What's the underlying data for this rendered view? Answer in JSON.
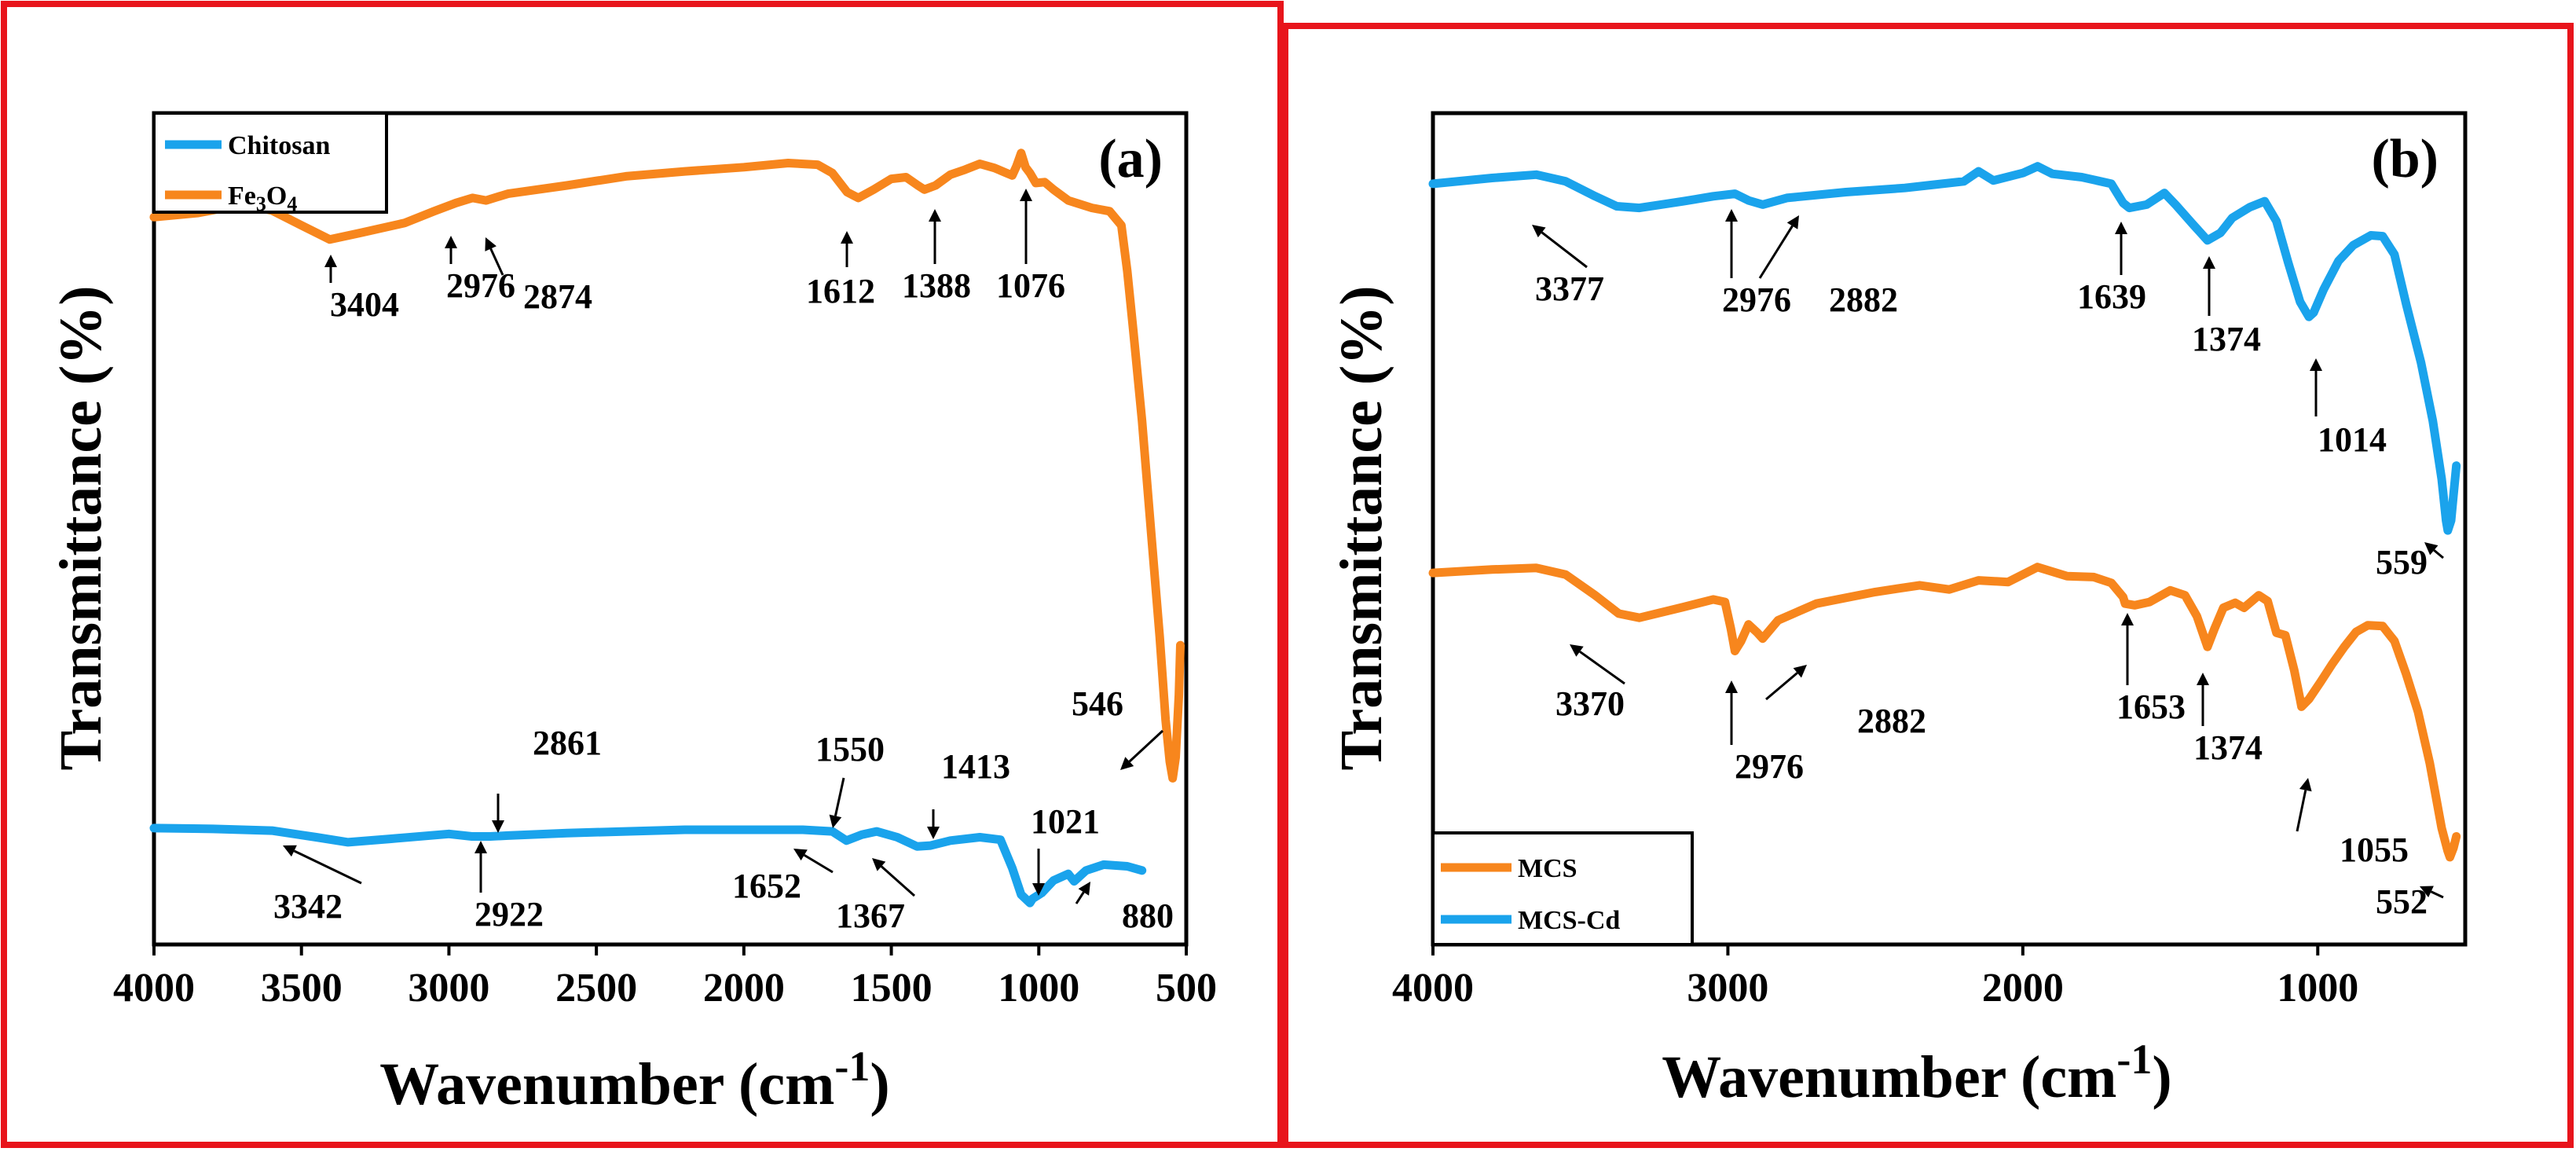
{
  "chart_data": [
    {
      "type": "line",
      "panel_label": "(a)",
      "xlabel": "Wavenumber (cm",
      "xlabel_sup": "-1",
      "xlabel_close": ")",
      "ylabel": "Transmittance (%)",
      "xlim": [
        4000,
        500
      ],
      "x_reversed": true,
      "ylim": [
        0,
        100
      ],
      "y_tick_labels_shown": false,
      "xticks": [
        4000,
        3500,
        3000,
        2500,
        2000,
        1500,
        1000,
        500
      ],
      "xtick_labels": [
        "4000",
        "3500",
        "3000",
        "2500",
        "2000",
        "1500",
        "1000",
        "500"
      ],
      "legend": {
        "position": "top-left",
        "entries": [
          {
            "name": "Chitosan",
            "color": "#1aa3ec"
          },
          {
            "name": "Fe3O4",
            "name_base": "Fe",
            "name_sub1": "3",
            "name_mid": "O",
            "name_sub2": "4",
            "color": "#f7861d"
          }
        ]
      },
      "series": [
        {
          "name": "Fe3O4",
          "color": "#f7861d",
          "points": [
            [
              4000,
              87.5
            ],
            [
              3850,
              88
            ],
            [
              3700,
              89
            ],
            [
              3600,
              88.3
            ],
            [
              3500,
              86.5
            ],
            [
              3404,
              84.8
            ],
            [
              3300,
              85.6
            ],
            [
              3150,
              86.8
            ],
            [
              3050,
              88.2
            ],
            [
              2976,
              89.2
            ],
            [
              2920,
              89.8
            ],
            [
              2874,
              89.5
            ],
            [
              2800,
              90.3
            ],
            [
              2600,
              91.3
            ],
            [
              2400,
              92.4
            ],
            [
              2200,
              93
            ],
            [
              2000,
              93.5
            ],
            [
              1850,
              94
            ],
            [
              1750,
              93.8
            ],
            [
              1700,
              92.8
            ],
            [
              1650,
              90.5
            ],
            [
              1612,
              89.8
            ],
            [
              1560,
              90.8
            ],
            [
              1500,
              92.1
            ],
            [
              1450,
              92.3
            ],
            [
              1410,
              91.3
            ],
            [
              1388,
              90.8
            ],
            [
              1350,
              91.3
            ],
            [
              1300,
              92.6
            ],
            [
              1250,
              93.2
            ],
            [
              1200,
              93.9
            ],
            [
              1150,
              93.4
            ],
            [
              1110,
              92.8
            ],
            [
              1090,
              92.5
            ],
            [
              1076,
              93.6
            ],
            [
              1060,
              95.2
            ],
            [
              1045,
              93.5
            ],
            [
              1030,
              92.8
            ],
            [
              1010,
              91.6
            ],
            [
              980,
              91.7
            ],
            [
              950,
              90.8
            ],
            [
              900,
              89.5
            ],
            [
              820,
              88.6
            ],
            [
              760,
              88.2
            ],
            [
              720,
              86.5
            ],
            [
              700,
              81
            ],
            [
              680,
              74
            ],
            [
              650,
              63
            ],
            [
              620,
              50
            ],
            [
              590,
              37
            ],
            [
              570,
              27
            ],
            [
              556,
              22
            ],
            [
              546,
              20
            ],
            [
              536,
              22.5
            ],
            [
              525,
              30
            ],
            [
              520,
              36
            ]
          ]
        },
        {
          "name": "Chitosan",
          "color": "#1aa3ec",
          "points": [
            [
              4000,
              14
            ],
            [
              3800,
              13.9
            ],
            [
              3600,
              13.7
            ],
            [
              3450,
              12.9
            ],
            [
              3342,
              12.3
            ],
            [
              3200,
              12.7
            ],
            [
              3000,
              13.3
            ],
            [
              2922,
              13
            ],
            [
              2861,
              13
            ],
            [
              2800,
              13.1
            ],
            [
              2600,
              13.4
            ],
            [
              2400,
              13.6
            ],
            [
              2200,
              13.8
            ],
            [
              2000,
              13.8
            ],
            [
              1800,
              13.8
            ],
            [
              1700,
              13.6
            ],
            [
              1652,
              12.5
            ],
            [
              1600,
              13.2
            ],
            [
              1550,
              13.6
            ],
            [
              1480,
              12.9
            ],
            [
              1413,
              11.8
            ],
            [
              1367,
              11.9
            ],
            [
              1300,
              12.5
            ],
            [
              1200,
              12.9
            ],
            [
              1130,
              12.6
            ],
            [
              1090,
              9.2
            ],
            [
              1060,
              6
            ],
            [
              1030,
              5
            ],
            [
              1021,
              5.5
            ],
            [
              990,
              6.2
            ],
            [
              950,
              7.7
            ],
            [
              900,
              8.5
            ],
            [
              880,
              7.6
            ],
            [
              840,
              8.9
            ],
            [
              780,
              9.6
            ],
            [
              700,
              9.4
            ],
            [
              650,
              8.9
            ]
          ]
        }
      ],
      "annotations": [
        {
          "label": "3404",
          "x": 3404
        },
        {
          "label": "2976",
          "x": 2976
        },
        {
          "label": "2874",
          "x": 2874
        },
        {
          "label": "1612",
          "x": 1612
        },
        {
          "label": "1388",
          "x": 1388
        },
        {
          "label": "1076",
          "x": 1076
        },
        {
          "label": "546",
          "x": 546
        },
        {
          "label": "3342",
          "x": 3342
        },
        {
          "label": "2922",
          "x": 2922
        },
        {
          "label": "2861",
          "x": 2861
        },
        {
          "label": "1550",
          "x": 1550
        },
        {
          "label": "1413",
          "x": 1413
        },
        {
          "label": "1652",
          "x": 1652
        },
        {
          "label": "1367",
          "x": 1367
        },
        {
          "label": "1021",
          "x": 1021
        },
        {
          "label": "880",
          "x": 880
        }
      ]
    },
    {
      "type": "line",
      "panel_label": "(b)",
      "xlabel": "Wavenumber (cm",
      "xlabel_sup": "-1",
      "xlabel_close": ")",
      "ylabel": "Transmittance (%)",
      "xlim": [
        4000,
        500
      ],
      "x_reversed": true,
      "ylim": [
        0,
        100
      ],
      "y_tick_labels_shown": false,
      "xticks": [
        4000,
        3000,
        2000,
        1000
      ],
      "xtick_labels": [
        "4000",
        "3000",
        "2000",
        "1000"
      ],
      "legend": {
        "position": "bottom-left",
        "entries": [
          {
            "name": "MCS",
            "color": "#f7861d"
          },
          {
            "name": "MCS-Cd",
            "color": "#1aa3ec"
          }
        ]
      },
      "series": [
        {
          "name": "MCS-Cd",
          "color": "#1aa3ec",
          "points": [
            [
              4000,
              91.5
            ],
            [
              3800,
              92.2
            ],
            [
              3650,
              92.6
            ],
            [
              3550,
              91.8
            ],
            [
              3450,
              90
            ],
            [
              3377,
              88.8
            ],
            [
              3300,
              88.6
            ],
            [
              3150,
              89.4
            ],
            [
              3050,
              90
            ],
            [
              2976,
              90.3
            ],
            [
              2930,
              89.5
            ],
            [
              2882,
              89
            ],
            [
              2800,
              89.8
            ],
            [
              2600,
              90.5
            ],
            [
              2400,
              91
            ],
            [
              2300,
              91.4
            ],
            [
              2200,
              91.8
            ],
            [
              2150,
              93
            ],
            [
              2100,
              91.9
            ],
            [
              2000,
              92.8
            ],
            [
              1950,
              93.6
            ],
            [
              1900,
              92.7
            ],
            [
              1800,
              92.3
            ],
            [
              1700,
              91.5
            ],
            [
              1660,
              89.2
            ],
            [
              1639,
              88.6
            ],
            [
              1580,
              89
            ],
            [
              1520,
              90.4
            ],
            [
              1480,
              88.9
            ],
            [
              1420,
              86.5
            ],
            [
              1374,
              84.7
            ],
            [
              1330,
              85.6
            ],
            [
              1290,
              87.4
            ],
            [
              1230,
              88.7
            ],
            [
              1180,
              89.4
            ],
            [
              1140,
              87
            ],
            [
              1100,
              82
            ],
            [
              1060,
              77.3
            ],
            [
              1030,
              75.5
            ],
            [
              1014,
              76
            ],
            [
              980,
              78.8
            ],
            [
              930,
              82.2
            ],
            [
              880,
              84.1
            ],
            [
              820,
              85.3
            ],
            [
              780,
              85.2
            ],
            [
              740,
              83
            ],
            [
              700,
              77
            ],
            [
              650,
              70
            ],
            [
              610,
              63
            ],
            [
              580,
              56
            ],
            [
              565,
              51
            ],
            [
              559,
              49.8
            ],
            [
              548,
              51
            ],
            [
              540,
              54
            ],
            [
              530,
              57.6
            ]
          ]
        },
        {
          "name": "MCS",
          "color": "#f7861d",
          "points": [
            [
              4000,
              44.7
            ],
            [
              3800,
              45.1
            ],
            [
              3650,
              45.3
            ],
            [
              3550,
              44.5
            ],
            [
              3450,
              42
            ],
            [
              3370,
              39.8
            ],
            [
              3300,
              39.3
            ],
            [
              3150,
              40.6
            ],
            [
              3050,
              41.5
            ],
            [
              3010,
              41.2
            ],
            [
              2990,
              38
            ],
            [
              2976,
              35.3
            ],
            [
              2955,
              36.5
            ],
            [
              2930,
              38.5
            ],
            [
              2900,
              37.5
            ],
            [
              2882,
              36.8
            ],
            [
              2830,
              39
            ],
            [
              2700,
              41
            ],
            [
              2500,
              42.4
            ],
            [
              2350,
              43.2
            ],
            [
              2250,
              42.7
            ],
            [
              2150,
              43.8
            ],
            [
              2050,
              43.6
            ],
            [
              1950,
              45.4
            ],
            [
              1850,
              44.3
            ],
            [
              1760,
              44.2
            ],
            [
              1700,
              43.5
            ],
            [
              1660,
              41.8
            ],
            [
              1653,
              41
            ],
            [
              1620,
              40.8
            ],
            [
              1570,
              41.2
            ],
            [
              1500,
              42.6
            ],
            [
              1450,
              42
            ],
            [
              1410,
              39.5
            ],
            [
              1374,
              35.8
            ],
            [
              1350,
              38
            ],
            [
              1320,
              40.5
            ],
            [
              1280,
              41.1
            ],
            [
              1250,
              40.5
            ],
            [
              1200,
              42
            ],
            [
              1170,
              41.3
            ],
            [
              1140,
              37.5
            ],
            [
              1110,
              37.2
            ],
            [
              1080,
              33
            ],
            [
              1060,
              29.5
            ],
            [
              1055,
              28.6
            ],
            [
              1030,
              29.5
            ],
            [
              990,
              31.6
            ],
            [
              950,
              33.8
            ],
            [
              910,
              35.8
            ],
            [
              870,
              37.6
            ],
            [
              830,
              38.4
            ],
            [
              780,
              38.3
            ],
            [
              740,
              36.5
            ],
            [
              700,
              32.5
            ],
            [
              660,
              28
            ],
            [
              620,
              21.8
            ],
            [
              580,
              14
            ],
            [
              560,
              11.3
            ],
            [
              552,
              10.5
            ],
            [
              540,
              11.6
            ],
            [
              530,
              13
            ]
          ]
        }
      ],
      "annotations": [
        {
          "label": "3377",
          "x": 3377
        },
        {
          "label": "2976",
          "x": 2976
        },
        {
          "label": "2882",
          "x": 2882
        },
        {
          "label": "1639",
          "x": 1639
        },
        {
          "label": "1374",
          "x": 1374
        },
        {
          "label": "1014",
          "x": 1014
        },
        {
          "label": "559",
          "x": 559
        },
        {
          "label": "3370",
          "x": 3370
        },
        {
          "label": "2976",
          "x": 2976
        },
        {
          "label": "2882",
          "x": 2882
        },
        {
          "label": "1653",
          "x": 1653
        },
        {
          "label": "1374",
          "x": 1374
        },
        {
          "label": "1055",
          "x": 1055
        },
        {
          "label": "552",
          "x": 552
        }
      ]
    }
  ]
}
